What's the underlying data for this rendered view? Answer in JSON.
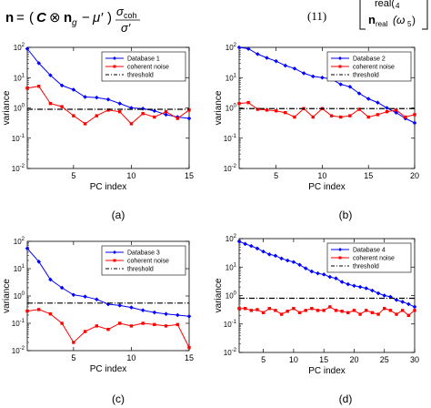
{
  "equation": {
    "number": "(11)",
    "lhs": "n",
    "rhs_open": "(",
    "C": "C",
    "otimes": "⊗",
    "n": "n",
    "n_sub": "g",
    "minus": "−",
    "mu_prime": "μ′",
    "rhs_close": ")",
    "frac_num": "σ",
    "frac_num_sub": "coh",
    "frac_den": "σ′",
    "matrix_row1": "real(",
    "matrix_row1_sub": "4",
    "matrix_row2_n": "n",
    "matrix_row2_sub": "real",
    "matrix_row2_arg": "(ω",
    "matrix_row2_arg_sub": "5",
    "matrix_row2_close": ")"
  },
  "panels": [
    {
      "caption": "(a)",
      "ylabel": "variance",
      "xlabel": "PC index"
    },
    {
      "caption": "(b)",
      "ylabel": "variance",
      "xlabel": "PC index"
    },
    {
      "caption": "(c)",
      "ylabel": "variance",
      "xlabel": "PC index"
    },
    {
      "caption": "(d)",
      "ylabel": "variance",
      "xlabel": "PC index"
    }
  ],
  "colors": {
    "database": "#0000ff",
    "noise": "#ff0000",
    "threshold": "#000000"
  },
  "chart_data": [
    {
      "type": "line",
      "panel": "a",
      "xlim": [
        1,
        15
      ],
      "ylim": [
        0.01,
        100
      ],
      "yscale": "log",
      "xlabel": "PC index",
      "ylabel": "variance",
      "legend": "top-right",
      "xticks": [
        5,
        10,
        15
      ],
      "yticks": [
        "10^-2",
        "10^-1",
        "10^0",
        "10^1",
        "10^2"
      ],
      "series": [
        {
          "name": "Database 1",
          "marker": "diamond",
          "x": [
            1,
            2,
            3,
            4,
            5,
            6,
            7,
            8,
            9,
            10,
            11,
            12,
            13,
            14,
            15
          ],
          "y": [
            90,
            30,
            12,
            5.5,
            4,
            2.3,
            2.2,
            1.9,
            1.4,
            1,
            0.95,
            0.8,
            0.6,
            0.5,
            0.45
          ]
        },
        {
          "name": "coherent noise",
          "marker": "square",
          "x": [
            1,
            2,
            3,
            4,
            5,
            6,
            7,
            8,
            9,
            10,
            11,
            12,
            13,
            14,
            15
          ],
          "y": [
            4.5,
            5.2,
            1.4,
            1.1,
            0.55,
            0.3,
            0.55,
            0.85,
            0.75,
            0.3,
            0.65,
            0.5,
            0.75,
            0.45,
            0.85
          ]
        },
        {
          "name": "threshold",
          "style": "dash-dot",
          "x": [
            1,
            15
          ],
          "y": [
            0.9,
            0.9
          ]
        }
      ]
    },
    {
      "type": "line",
      "panel": "b",
      "xlim": [
        1,
        20
      ],
      "ylim": [
        0.01,
        100
      ],
      "yscale": "log",
      "xlabel": "PC index",
      "ylabel": "variance",
      "legend": "top-right",
      "xticks": [
        5,
        10,
        15,
        20
      ],
      "yticks": [
        "10^-2",
        "10^-1",
        "10^0",
        "10^1",
        "10^2"
      ],
      "series": [
        {
          "name": "Database 2",
          "marker": "diamond",
          "x": [
            1,
            2,
            3,
            4,
            5,
            6,
            7,
            8,
            9,
            10,
            11,
            12,
            13,
            14,
            15,
            16,
            17,
            18,
            19,
            20
          ],
          "y": [
            100,
            90,
            60,
            45,
            35,
            25,
            20,
            14,
            11,
            10,
            9,
            6,
            5,
            3,
            2,
            1.5,
            1,
            0.7,
            0.45,
            0.32
          ]
        },
        {
          "name": "coherent noise",
          "marker": "square",
          "x": [
            1,
            2,
            3,
            4,
            5,
            6,
            7,
            8,
            9,
            10,
            11,
            12,
            13,
            14,
            15,
            16,
            17,
            18,
            19,
            20
          ],
          "y": [
            1.4,
            1.5,
            0.9,
            0.85,
            0.8,
            0.7,
            0.5,
            0.95,
            0.5,
            0.95,
            0.55,
            0.5,
            0.55,
            0.9,
            0.5,
            0.6,
            0.75,
            0.85,
            0.5,
            0.6
          ]
        },
        {
          "name": "threshold",
          "style": "dash-dot",
          "x": [
            1,
            20
          ],
          "y": [
            0.95,
            0.95
          ]
        }
      ]
    },
    {
      "type": "line",
      "panel": "c",
      "xlim": [
        1,
        15
      ],
      "ylim": [
        0.01,
        100
      ],
      "yscale": "log",
      "xlabel": "PC index",
      "ylabel": "variance",
      "legend": "top-right",
      "xticks": [
        5,
        10,
        15
      ],
      "yticks": [
        "10^-2",
        "10^-1",
        "10^0",
        "10^1",
        "10^2"
      ],
      "series": [
        {
          "name": "Database 3",
          "marker": "diamond",
          "x": [
            1,
            2,
            3,
            4,
            5,
            6,
            7,
            8,
            9,
            10,
            11,
            12,
            13,
            14,
            15
          ],
          "y": [
            55,
            18,
            4,
            2,
            1.1,
            0.95,
            0.75,
            0.5,
            0.45,
            0.38,
            0.3,
            0.25,
            0.22,
            0.2,
            0.18
          ]
        },
        {
          "name": "coherent noise",
          "marker": "square",
          "x": [
            1,
            2,
            3,
            4,
            5,
            6,
            7,
            8,
            9,
            10,
            11,
            12,
            13,
            14,
            15
          ],
          "y": [
            0.28,
            0.32,
            0.22,
            0.1,
            0.02,
            0.05,
            0.08,
            0.06,
            0.1,
            0.08,
            0.1,
            0.09,
            0.08,
            0.09,
            0.013
          ]
        },
        {
          "name": "threshold",
          "style": "dash-dot",
          "x": [
            1,
            15
          ],
          "y": [
            0.55,
            0.55
          ]
        }
      ]
    },
    {
      "type": "line",
      "panel": "d",
      "xlim": [
        1,
        30
      ],
      "ylim": [
        0.01,
        100
      ],
      "yscale": "log",
      "xlabel": "PC index",
      "ylabel": "variance",
      "legend": "top-right",
      "xticks": [
        5,
        10,
        15,
        20,
        25,
        30
      ],
      "yticks": [
        "10^-2",
        "10^-1",
        "10^0",
        "10^1",
        "10^2"
      ],
      "series": [
        {
          "name": "Database 4",
          "marker": "diamond",
          "x": [
            1,
            2,
            3,
            4,
            5,
            6,
            7,
            8,
            9,
            10,
            11,
            12,
            13,
            14,
            15,
            16,
            17,
            18,
            19,
            20,
            21,
            22,
            23,
            24,
            25,
            26,
            27,
            28,
            29,
            30
          ],
          "y": [
            80,
            65,
            55,
            45,
            35,
            28,
            25,
            20,
            17,
            15,
            12,
            9,
            7,
            6,
            5.5,
            4.5,
            4,
            3,
            2.5,
            2.2,
            2,
            1.8,
            1.5,
            1.2,
            1,
            0.9,
            0.7,
            0.6,
            0.5,
            0.4
          ]
        },
        {
          "name": "coherent noise",
          "marker": "square",
          "x": [
            1,
            2,
            3,
            4,
            5,
            6,
            7,
            8,
            9,
            10,
            11,
            12,
            13,
            14,
            15,
            16,
            17,
            18,
            19,
            20,
            21,
            22,
            23,
            24,
            25,
            26,
            27,
            28,
            29,
            30
          ],
          "y": [
            0.35,
            0.35,
            0.3,
            0.32,
            0.25,
            0.35,
            0.3,
            0.22,
            0.28,
            0.35,
            0.25,
            0.3,
            0.35,
            0.3,
            0.3,
            0.4,
            0.3,
            0.28,
            0.25,
            0.3,
            0.22,
            0.3,
            0.25,
            0.22,
            0.35,
            0.3,
            0.22,
            0.3,
            0.2,
            0.3
          ]
        },
        {
          "name": "threshold",
          "style": "dash-dot",
          "x": [
            1,
            30
          ],
          "y": [
            0.8,
            0.8
          ]
        }
      ]
    }
  ]
}
